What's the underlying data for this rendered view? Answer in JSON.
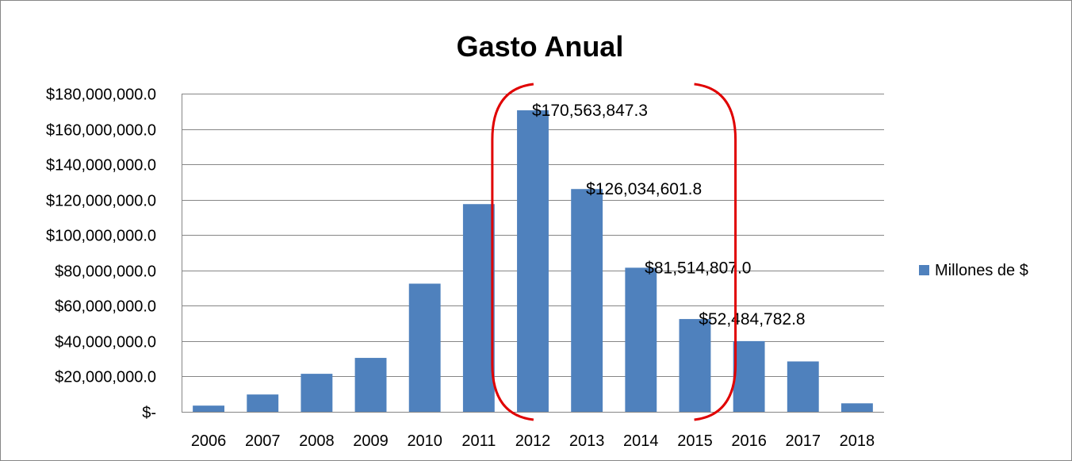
{
  "chart_data": {
    "type": "bar",
    "title": "Gasto  Anual",
    "xlabel": "",
    "ylabel": "",
    "categories": [
      "2006",
      "2007",
      "2008",
      "2009",
      "2010",
      "2011",
      "2012",
      "2013",
      "2014",
      "2015",
      "2016",
      "2017",
      "2018"
    ],
    "series": [
      {
        "name": "Millones de $",
        "color": "#4F81BD",
        "values": [
          3500000,
          9800000,
          21500000,
          30500000,
          72500000,
          117500000,
          170563847.3,
          126034601.8,
          81514807.0,
          52484782.8,
          40000000,
          28500000,
          4800000
        ]
      }
    ],
    "ylim": [
      0,
      180000000
    ],
    "yticks": [
      0,
      20000000,
      40000000,
      60000000,
      80000000,
      100000000,
      120000000,
      140000000,
      160000000,
      180000000
    ],
    "ytick_labels": [
      "$-",
      "$20,000,000.0",
      "$40,000,000.0",
      "$60,000,000.0",
      "$80,000,000.0",
      "$100,000,000.0",
      "$120,000,000.0",
      "$140,000,000.0",
      "$160,000,000.0",
      "$180,000,000.0"
    ],
    "data_labels": [
      {
        "category": "2012",
        "text": "$170,563,847.3"
      },
      {
        "category": "2013",
        "text": "$126,034,601.8"
      },
      {
        "category": "2014",
        "text": "$81,514,807.0"
      },
      {
        "category": "2015",
        "text": "$52,484,782.8"
      }
    ],
    "grid": true,
    "legend_position": "right",
    "annotation": {
      "shape": "bracket-outline",
      "color": "#E00000",
      "spans": [
        "2012",
        "2015"
      ]
    }
  }
}
